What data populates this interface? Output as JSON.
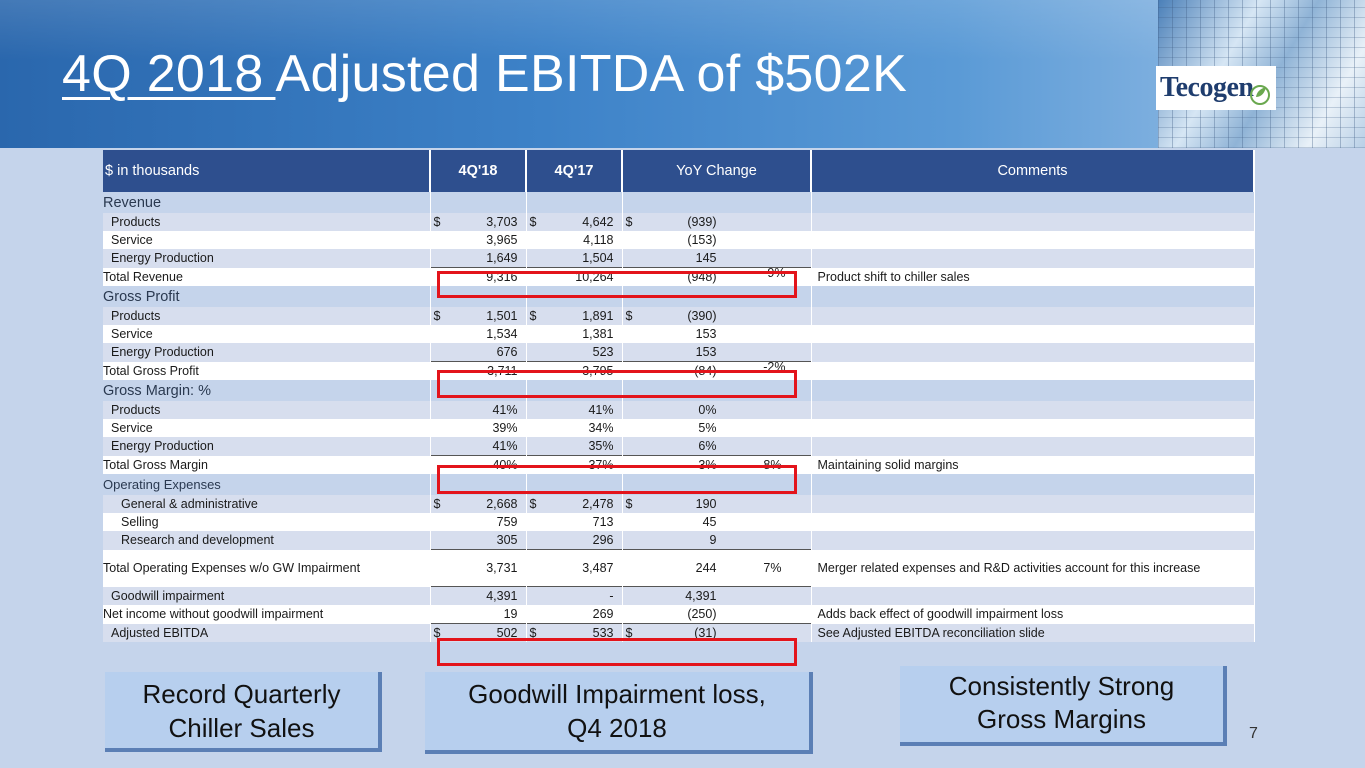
{
  "slide": {
    "title_underlined": "4Q 2018 ",
    "title_rest": "Adjusted EBITDA of $502K",
    "logo_text": "Tecogen",
    "page_number": "7"
  },
  "table": {
    "headers": [
      "$ in thousands",
      "4Q'18",
      "4Q'17",
      "YoY Change",
      "",
      "Comments"
    ],
    "sections": {
      "revenue": "Revenue",
      "gross_profit": "Gross Profit",
      "gross_margin": "Gross Margin: %",
      "opex": "Operating Expenses"
    },
    "rows": {
      "rev_products": {
        "label": "Products",
        "d1": "$",
        "v1": "3,703",
        "d2": "$",
        "v2": "4,642",
        "d3": "$",
        "v3": "(939)",
        "pct": "",
        "comment": ""
      },
      "rev_service": {
        "label": "Service",
        "v1": "3,965",
        "v2": "4,118",
        "v3": "(153)",
        "pct": "",
        "comment": ""
      },
      "rev_energy": {
        "label": "Energy Production",
        "v1": "1,649",
        "v2": "1,504",
        "v3": "145",
        "pct": "",
        "comment": ""
      },
      "rev_total": {
        "label": "Total Revenue",
        "v1": "9,316",
        "v2": "10,264",
        "v3": "(948)",
        "pct": "-9%",
        "comment": "Product shift to chiller sales"
      },
      "gp_products": {
        "label": "Products",
        "d1": "$",
        "v1": "1,501",
        "d2": "$",
        "v2": "1,891",
        "d3": "$",
        "v3": "(390)",
        "pct": "",
        "comment": ""
      },
      "gp_service": {
        "label": "Service",
        "v1": "1,534",
        "v2": "1,381",
        "v3": "153",
        "pct": "",
        "comment": ""
      },
      "gp_energy": {
        "label": "Energy Production",
        "v1": "676",
        "v2": "523",
        "v3": "153",
        "pct": "",
        "comment": ""
      },
      "gp_total": {
        "label": "Total Gross Profit",
        "v1": "3,711",
        "v2": "3,795",
        "v3": "(84)",
        "pct": "-2%",
        "comment": ""
      },
      "gm_products": {
        "label": "Products",
        "v1": "41%",
        "v2": "41%",
        "v3": "0%",
        "pct": "",
        "comment": ""
      },
      "gm_service": {
        "label": "Service",
        "v1": "39%",
        "v2": "34%",
        "v3": "5%",
        "pct": "",
        "comment": ""
      },
      "gm_energy": {
        "label": "Energy Production",
        "v1": "41%",
        "v2": "35%",
        "v3": "6%",
        "pct": "",
        "comment": ""
      },
      "gm_total": {
        "label": "Total Gross Margin",
        "v1": "40%",
        "v2": "37%",
        "v3": "3%",
        "pct": "8%",
        "comment": "Maintaining solid margins"
      },
      "ox_ga": {
        "label": "General & administrative",
        "d1": "$",
        "v1": "2,668",
        "d2": "$",
        "v2": "2,478",
        "d3": "$",
        "v3": "190",
        "pct": "",
        "comment": ""
      },
      "ox_selling": {
        "label": "Selling",
        "v1": "759",
        "v2": "713",
        "v3": "45",
        "pct": "",
        "comment": ""
      },
      "ox_rd": {
        "label": "Research and development",
        "v1": "305",
        "v2": "296",
        "v3": "9",
        "pct": "",
        "comment": ""
      },
      "ox_total": {
        "label": "Total Operating Expenses w/o GW Impairment",
        "v1": "3,731",
        "v2": "3,487",
        "v3": "244",
        "pct": "7%",
        "comment": "Merger related expenses and R&D activities account for this increase"
      },
      "gw": {
        "label": "Goodwill impairment",
        "v1": "4,391",
        "v2": "-",
        "v3": "4,391",
        "pct": "",
        "comment": ""
      },
      "ni": {
        "label": "Net income without goodwill impairment",
        "v1": "19",
        "v2": "269",
        "v3": "(250)",
        "pct": "",
        "comment": "Adds back effect of goodwill impairment loss"
      },
      "ebitda": {
        "label": "Adjusted EBITDA",
        "d1": "$",
        "v1": "502",
        "d2": "$",
        "v2": "533",
        "d3": "$",
        "v3": "(31)",
        "pct": "",
        "comment": "See Adjusted EBITDA  reconciliation slide"
      }
    }
  },
  "callouts": {
    "left": {
      "line1": "Record Quarterly",
      "line2": "Chiller Sales"
    },
    "middle": {
      "line1": "Goodwill Impairment loss,",
      "line2": "Q4 2018"
    },
    "right": {
      "line1": "Consistently Strong",
      "line2": "Gross Margins"
    }
  },
  "colors": {
    "header_blue": "#2e4f8e",
    "highlight_red": "#e3141b",
    "background": "#c5d4eb"
  }
}
